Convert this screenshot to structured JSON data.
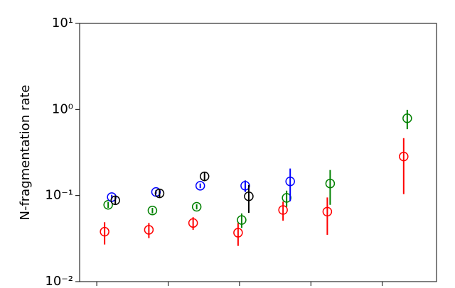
{
  "chart_data": {
    "type": "errorbar-scatter",
    "ylabel": "N-fragmentation rate",
    "log_y": true,
    "xlim": [
      -0.24,
      4.76
    ],
    "xticks": [
      0,
      1,
      2,
      3,
      4
    ],
    "ylim": [
      0.01,
      10
    ],
    "yticks": [
      {
        "value": 0.01,
        "label": "10⁻²"
      },
      {
        "value": 0.1,
        "label": "10⁻¹"
      },
      {
        "value": 1,
        "label": "10⁰"
      },
      {
        "value": 10,
        "label": "10¹"
      }
    ],
    "series": [
      {
        "color": "#ff0000",
        "x": [
          0.11,
          0.73,
          1.35,
          1.98,
          2.61,
          3.23,
          4.3
        ],
        "values": [
          0.038,
          0.04,
          0.048,
          0.037,
          0.068,
          0.065,
          0.284
        ],
        "errors": [
          0.011,
          0.008,
          0.008,
          0.011,
          0.017,
          0.03,
          0.18
        ]
      },
      {
        "color": "#008000",
        "x": [
          0.16,
          0.78,
          1.4,
          2.03,
          2.66,
          3.27,
          4.35
        ],
        "values": [
          0.078,
          0.067,
          0.074,
          0.052,
          0.094,
          0.138,
          0.79
        ],
        "errors": [
          0.006,
          0.005,
          0.005,
          0.01,
          0.02,
          0.06,
          0.2
        ]
      },
      {
        "color": "#0000ff",
        "x": [
          0.21,
          0.83,
          1.45,
          2.08,
          2.71,
          3.32,
          4.4
        ],
        "values": [
          0.096,
          0.11,
          0.13,
          0.13,
          0.146,
          null,
          null
        ],
        "errors": [
          0.006,
          0.006,
          0.008,
          0.02,
          0.06,
          null,
          null
        ]
      },
      {
        "color": "#000000",
        "x": [
          0.26,
          0.88,
          1.51,
          2.13,
          2.75,
          3.37,
          4.45
        ],
        "values": [
          0.088,
          0.106,
          0.167,
          0.098,
          null,
          null,
          null
        ],
        "errors": [
          0.01,
          0.012,
          0.02,
          0.035,
          null,
          null,
          null
        ]
      }
    ]
  }
}
